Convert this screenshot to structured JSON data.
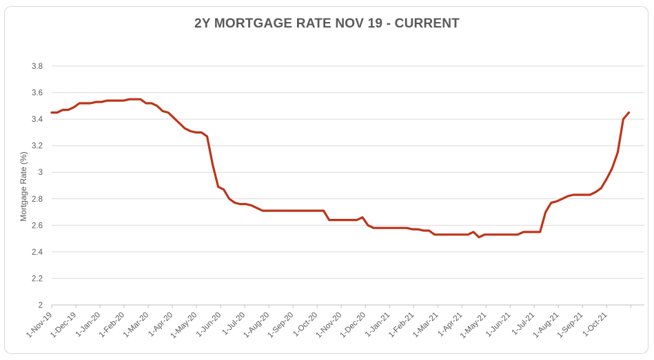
{
  "title": "2Y MORTGAGE RATE NOV 19 - CURRENT",
  "colors": {
    "title": "#595959",
    "axis_text": "#595959",
    "gridline": "#d9d9d9",
    "axis_line": "#bfbfbf",
    "line": "#be3418",
    "border": "#d9d9d9",
    "background": "#ffffff"
  },
  "y_axis": {
    "label": "Mortgage Rate (%)",
    "tick_labels": [
      "2",
      "2.2",
      "2.4",
      "2.6",
      "2.8",
      "3",
      "3.2",
      "3.4",
      "3.6",
      "3.8"
    ],
    "min": 2,
    "max": 3.8
  },
  "x_axis": {
    "tick_labels": [
      "1-Nov-19",
      "1-Dec-19",
      "1-Jan-20",
      "1-Feb-20",
      "1-Mar-20",
      "1-Apr-20",
      "1-May-20",
      "1-Jun-20",
      "1-Jul-20",
      "1-Aug-20",
      "1-Sep-20",
      "1-Oct-20",
      "1-Nov-20",
      "1-Dec-20",
      "1-Jan-21",
      "1-Feb-21",
      "1-Mar-21",
      "1-Apr-21",
      "1-May-21",
      "1-Jun-21",
      "1-Jul-21",
      "1-Aug-21",
      "1-Sep-21",
      "1-Oct-21"
    ]
  },
  "chart_data": {
    "type": "line",
    "title": "2Y MORTGAGE RATE NOV 19 - CURRENT",
    "xlabel": "",
    "ylabel": "Mortgage Rate (%)",
    "ylim": [
      2,
      3.8
    ],
    "grid": "horizontal",
    "legend": "none",
    "x_tick_labels": [
      "1-Nov-19",
      "1-Dec-19",
      "1-Jan-20",
      "1-Feb-20",
      "1-Mar-20",
      "1-Apr-20",
      "1-May-20",
      "1-Jun-20",
      "1-Jul-20",
      "1-Aug-20",
      "1-Sep-20",
      "1-Oct-20",
      "1-Nov-20",
      "1-Dec-20",
      "1-Jan-21",
      "1-Feb-21",
      "1-Mar-21",
      "1-Apr-21",
      "1-May-21",
      "1-Jun-21",
      "1-Jul-21",
      "1-Aug-21",
      "1-Sep-21",
      "1-Oct-21"
    ],
    "series": [
      {
        "name": "2Y Mortgage Rate (%)",
        "interval": "weekly",
        "start_date": "1-Nov-19",
        "end_date": "29-Oct-21",
        "values": [
          3.45,
          3.45,
          3.47,
          3.47,
          3.49,
          3.52,
          3.52,
          3.52,
          3.53,
          3.53,
          3.54,
          3.54,
          3.54,
          3.54,
          3.55,
          3.55,
          3.55,
          3.52,
          3.52,
          3.5,
          3.46,
          3.45,
          3.41,
          3.37,
          3.33,
          3.31,
          3.3,
          3.3,
          3.27,
          3.06,
          2.89,
          2.87,
          2.8,
          2.77,
          2.76,
          2.76,
          2.75,
          2.73,
          2.71,
          2.71,
          2.71,
          2.71,
          2.71,
          2.71,
          2.71,
          2.71,
          2.71,
          2.71,
          2.71,
          2.71,
          2.64,
          2.64,
          2.64,
          2.64,
          2.64,
          2.64,
          2.66,
          2.6,
          2.58,
          2.58,
          2.58,
          2.58,
          2.58,
          2.58,
          2.58,
          2.57,
          2.57,
          2.56,
          2.56,
          2.53,
          2.53,
          2.53,
          2.53,
          2.53,
          2.53,
          2.53,
          2.55,
          2.51,
          2.53,
          2.53,
          2.53,
          2.53,
          2.53,
          2.53,
          2.53,
          2.55,
          2.55,
          2.55,
          2.55,
          2.7,
          2.77,
          2.78,
          2.8,
          2.82,
          2.83,
          2.83,
          2.83,
          2.83,
          2.85,
          2.88,
          2.95,
          3.03,
          3.15,
          3.4,
          3.45
        ]
      }
    ]
  }
}
